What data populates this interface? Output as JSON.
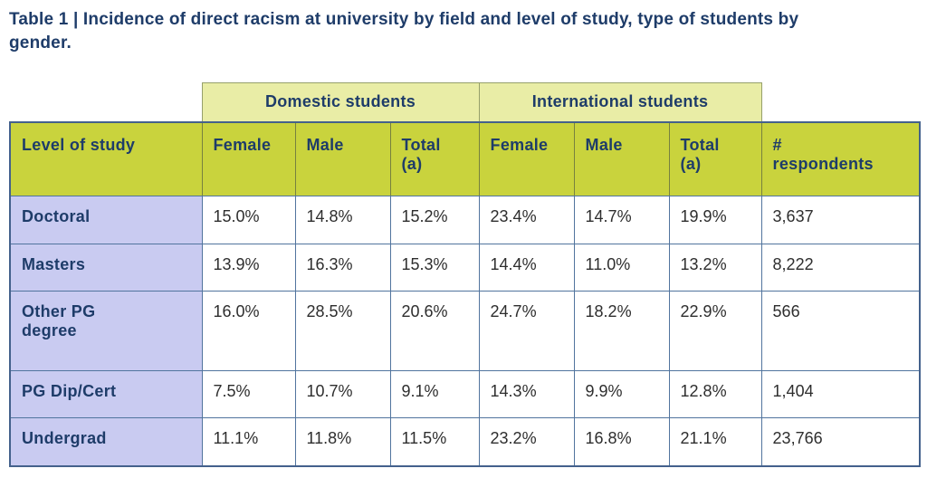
{
  "title": "Table 1 | Incidence of direct racism at university by field and level of study, type of students by\ngender.",
  "colors": {
    "title_text": "#1e3c69",
    "group_band_bg": "#e9eda6",
    "header_bg": "#c9d33d",
    "row_label_bg": "#c9cbf1",
    "data_text": "#2e2e2e",
    "inner_border": "#51749e",
    "outer_border": "#44618c"
  },
  "table": {
    "group_headers": [
      {
        "label": "Domestic students",
        "span": 3
      },
      {
        "label": "International students",
        "span": 3
      }
    ],
    "columns": [
      "Level of study",
      "Female",
      "Male",
      "Total\n(a)",
      "Female",
      "Male",
      "Total\n(a)",
      "#\nrespondents"
    ],
    "rows": [
      {
        "label": "Doctoral",
        "values": [
          "15.0%",
          "14.8%",
          "15.2%",
          "23.4%",
          "14.7%",
          "19.9%",
          "3,637"
        ]
      },
      {
        "label": "Masters",
        "values": [
          "13.9%",
          "16.3%",
          "15.3%",
          "14.4%",
          "11.0%",
          "13.2%",
          "8,222"
        ]
      },
      {
        "label": "Other PG\ndegree",
        "values": [
          "16.0%",
          "28.5%",
          "20.6%",
          "24.7%",
          "18.2%",
          "22.9%",
          "566"
        ]
      },
      {
        "label": "PG Dip/Cert",
        "values": [
          "7.5%",
          "10.7%",
          "9.1%",
          "14.3%",
          "9.9%",
          "12.8%",
          "1,404"
        ]
      },
      {
        "label": "Undergrad",
        "values": [
          "11.1%",
          "11.8%",
          "11.5%",
          "23.2%",
          "16.8%",
          "21.1%",
          "23,766"
        ]
      }
    ]
  }
}
